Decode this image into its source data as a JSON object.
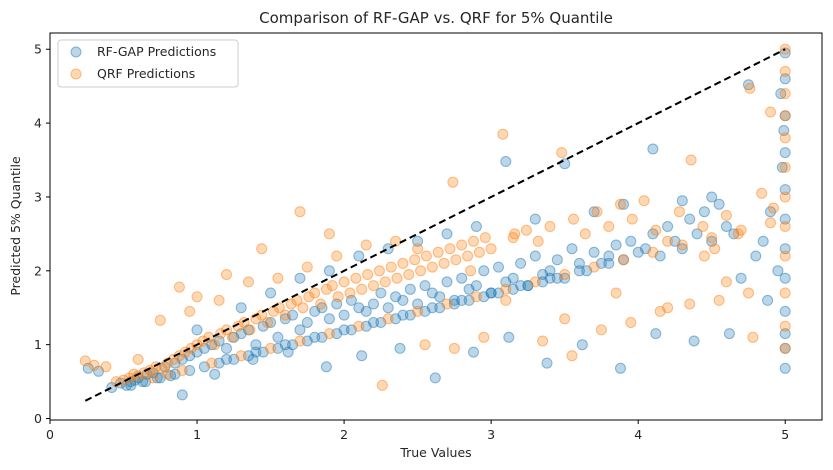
{
  "chart_data": {
    "type": "scatter",
    "title": "Comparison of RF-GAP vs. QRF for 5% Quantile",
    "xlabel": "True Values",
    "ylabel": "Predicted 5% Quantile",
    "xlim": [
      0.0,
      5.25
    ],
    "ylim": [
      -0.02,
      5.22
    ],
    "xticks": [
      0,
      1,
      2,
      3,
      4,
      5
    ],
    "yticks": [
      0,
      1,
      2,
      3,
      4,
      5
    ],
    "grid": false,
    "legend": "top-left",
    "reference_line": {
      "x": [
        0.24,
        5.0
      ],
      "y": [
        0.24,
        5.0
      ],
      "color": "#000000",
      "style": "dashed"
    },
    "series": [
      {
        "name": "RF-GAP Predictions",
        "color": "#1f77b4",
        "x": [
          0.26,
          0.33,
          0.42,
          0.48,
          0.52,
          0.55,
          0.58,
          0.6,
          0.63,
          0.66,
          0.7,
          0.73,
          0.78,
          0.82,
          0.85,
          0.9,
          0.95,
          1.0,
          1.05,
          1.1,
          1.15,
          1.2,
          1.25,
          1.3,
          1.35,
          1.4,
          1.45,
          1.5,
          1.55,
          1.6,
          1.65,
          1.7,
          1.75,
          1.8,
          1.85,
          1.9,
          1.95,
          2.0,
          2.05,
          2.1,
          2.15,
          2.2,
          2.25,
          2.3,
          2.35,
          2.4,
          2.45,
          2.5,
          2.55,
          2.6,
          2.65,
          2.7,
          2.75,
          2.8,
          2.85,
          2.9,
          2.95,
          3.0,
          3.05,
          3.1,
          3.15,
          3.2,
          3.25,
          3.3,
          3.35,
          3.4,
          3.45,
          3.5,
          3.55,
          3.6,
          3.65,
          3.7,
          3.75,
          3.8,
          3.85,
          3.9,
          3.95,
          4.0,
          4.05,
          4.1,
          4.15,
          4.2,
          4.25,
          4.3,
          4.35,
          4.4,
          4.45,
          4.5,
          4.55,
          4.6,
          4.65,
          4.7,
          4.75,
          4.8,
          4.85,
          4.9,
          4.95,
          5.0,
          5.0,
          5.0,
          5.0,
          5.0,
          5.0,
          5.0,
          5.0,
          5.0,
          5.0,
          5.0,
          5.0,
          1.2,
          1.4,
          1.6,
          1.8,
          2.0,
          2.2,
          2.4,
          2.6,
          2.8,
          3.0,
          3.2,
          3.4,
          3.6,
          3.8,
          1.0,
          1.3,
          1.5,
          1.7,
          1.9,
          2.1,
          2.3,
          2.5,
          2.7,
          2.9,
          3.1,
          3.3,
          3.5,
          3.7,
          3.9,
          4.1,
          4.3,
          4.5,
          0.55,
          0.65,
          0.75,
          0.85,
          0.95,
          1.05,
          1.15,
          1.25,
          1.35,
          1.45,
          1.55,
          1.65,
          1.75,
          1.85,
          1.95,
          2.05,
          2.15,
          2.25,
          2.35,
          2.45,
          2.55,
          2.65,
          2.75,
          2.85,
          2.95,
          3.05,
          3.15,
          3.25,
          3.35,
          3.45,
          0.9,
          1.12,
          1.38,
          1.62,
          1.88,
          2.12,
          2.38,
          2.62,
          2.88,
          3.12,
          3.38,
          3.62,
          3.88,
          4.12,
          4.38,
          4.62,
          4.88,
          4.98,
          4.99,
          4.97
        ],
        "y": [
          0.68,
          0.64,
          0.42,
          0.48,
          0.45,
          0.5,
          0.52,
          0.55,
          0.5,
          0.6,
          0.62,
          0.55,
          0.7,
          0.58,
          0.75,
          0.8,
          0.85,
          0.9,
          0.95,
          1.0,
          1.05,
          0.95,
          1.1,
          1.15,
          1.2,
          1.0,
          1.25,
          1.3,
          1.1,
          1.35,
          1.4,
          1.2,
          1.3,
          1.45,
          1.5,
          1.35,
          1.55,
          1.4,
          1.6,
          1.5,
          1.45,
          1.55,
          1.7,
          1.5,
          1.65,
          1.6,
          1.75,
          1.55,
          1.8,
          1.7,
          1.65,
          1.85,
          1.6,
          1.9,
          1.75,
          1.8,
          2.0,
          1.7,
          2.05,
          1.85,
          1.9,
          2.1,
          1.8,
          2.2,
          1.95,
          2.0,
          2.15,
          1.9,
          2.3,
          2.1,
          2.0,
          2.25,
          2.1,
          2.2,
          2.35,
          2.15,
          2.4,
          2.25,
          2.3,
          2.5,
          2.2,
          2.6,
          2.4,
          2.3,
          2.7,
          2.5,
          2.8,
          2.4,
          2.9,
          2.6,
          2.5,
          1.9,
          4.52,
          2.2,
          2.4,
          2.8,
          2.0,
          0.68,
          0.95,
          1.15,
          1.45,
          1.9,
          2.3,
          2.7,
          3.1,
          3.6,
          4.1,
          4.6,
          4.95,
          0.8,
          0.9,
          1.0,
          1.1,
          1.2,
          1.3,
          1.4,
          1.5,
          1.6,
          1.7,
          1.8,
          1.9,
          2.0,
          2.1,
          1.2,
          1.5,
          1.7,
          1.9,
          2.0,
          2.2,
          2.3,
          2.4,
          2.5,
          2.6,
          3.48,
          2.7,
          3.45,
          2.8,
          2.9,
          3.65,
          2.95,
          3.0,
          0.45,
          0.5,
          0.55,
          0.6,
          0.65,
          0.7,
          0.75,
          0.8,
          0.85,
          0.9,
          0.95,
          1.0,
          1.05,
          1.1,
          1.15,
          1.2,
          1.25,
          1.3,
          1.35,
          1.4,
          1.45,
          1.5,
          1.55,
          1.6,
          1.65,
          1.7,
          1.75,
          1.8,
          1.85,
          1.9,
          0.32,
          0.6,
          0.8,
          0.9,
          0.7,
          0.85,
          0.95,
          0.55,
          0.9,
          1.1,
          0.75,
          1.0,
          0.68,
          1.15,
          1.05,
          1.15,
          1.6,
          3.4,
          3.9,
          4.4
        ]
      },
      {
        "name": "QRF Predictions",
        "color": "#ff7f0e",
        "x": [
          0.24,
          0.3,
          0.38,
          0.45,
          0.5,
          0.54,
          0.57,
          0.6,
          0.64,
          0.68,
          0.72,
          0.76,
          0.8,
          0.84,
          0.88,
          0.92,
          0.96,
          1.0,
          1.04,
          1.08,
          1.12,
          1.16,
          1.2,
          1.24,
          1.28,
          1.32,
          1.36,
          1.4,
          1.44,
          1.48,
          1.52,
          1.56,
          1.6,
          1.64,
          1.68,
          1.72,
          1.76,
          1.8,
          1.84,
          1.88,
          1.92,
          1.96,
          2.0,
          2.04,
          2.08,
          2.12,
          2.16,
          2.2,
          2.24,
          2.28,
          2.32,
          2.36,
          2.4,
          2.44,
          2.48,
          2.52,
          2.56,
          2.6,
          2.64,
          2.68,
          2.72,
          2.76,
          2.8,
          2.84,
          2.88,
          2.92,
          2.96,
          3.0,
          3.08,
          3.16,
          3.24,
          3.32,
          3.4,
          3.48,
          3.56,
          3.64,
          3.72,
          3.8,
          3.88,
          3.96,
          4.04,
          4.12,
          4.2,
          4.28,
          4.36,
          4.44,
          4.52,
          4.6,
          4.68,
          4.76,
          4.84,
          4.92,
          5.0,
          5.0,
          5.0,
          5.0,
          5.0,
          5.0,
          5.0,
          5.0,
          5.0,
          5.0,
          5.0,
          5.0,
          0.88,
          1.0,
          1.2,
          1.44,
          1.7,
          1.9,
          2.26,
          2.5,
          2.74,
          2.86,
          3.1,
          3.5,
          3.85,
          4.2,
          4.45,
          4.6,
          4.78,
          4.9,
          0.7,
          0.8,
          0.9,
          1.1,
          1.3,
          1.5,
          1.7,
          1.9,
          2.1,
          2.3,
          2.5,
          2.7,
          2.9,
          3.1,
          3.3,
          3.5,
          3.7,
          3.9,
          4.1,
          4.3,
          4.5,
          4.7,
          4.9,
          0.6,
          0.75,
          0.95,
          1.15,
          1.35,
          1.55,
          1.75,
          1.95,
          2.15,
          2.35,
          2.55,
          2.75,
          2.95,
          3.15,
          3.35,
          3.55,
          3.75,
          3.95,
          4.15,
          4.35,
          4.55,
          4.75
        ],
        "y": [
          0.78,
          0.72,
          0.7,
          0.5,
          0.52,
          0.55,
          0.6,
          0.58,
          0.62,
          0.65,
          0.7,
          0.68,
          0.75,
          0.8,
          0.85,
          0.9,
          0.95,
          1.0,
          1.05,
          1.1,
          1.0,
          1.15,
          1.2,
          1.1,
          1.25,
          1.3,
          1.2,
          1.35,
          1.4,
          1.3,
          1.45,
          1.5,
          1.4,
          1.55,
          1.6,
          1.5,
          1.65,
          1.7,
          1.55,
          1.75,
          1.8,
          1.65,
          1.85,
          1.7,
          1.9,
          1.75,
          1.95,
          1.8,
          2.0,
          1.85,
          2.05,
          1.9,
          2.1,
          1.95,
          2.15,
          2.0,
          2.2,
          2.05,
          2.25,
          2.1,
          2.3,
          2.15,
          2.35,
          2.2,
          2.4,
          2.25,
          2.45,
          2.3,
          3.85,
          2.5,
          2.55,
          2.4,
          2.6,
          3.6,
          2.7,
          2.5,
          2.8,
          2.6,
          2.9,
          2.7,
          2.95,
          2.55,
          2.4,
          2.8,
          3.5,
          2.6,
          2.3,
          2.75,
          2.5,
          4.47,
          3.05,
          2.85,
          5.0,
          4.7,
          4.4,
          4.1,
          3.8,
          3.4,
          3.0,
          2.6,
          2.2,
          1.7,
          1.25,
          0.95,
          1.78,
          1.65,
          1.95,
          2.3,
          2.8,
          2.5,
          0.45,
          2.3,
          3.2,
          2.0,
          1.6,
          1.35,
          1.7,
          1.5,
          2.2,
          1.85,
          1.1,
          4.15,
          0.55,
          0.6,
          0.65,
          0.75,
          0.85,
          0.95,
          1.05,
          1.15,
          1.25,
          1.35,
          1.45,
          1.55,
          1.65,
          1.75,
          1.85,
          1.95,
          2.05,
          2.15,
          2.25,
          2.35,
          2.45,
          2.55,
          2.65,
          0.8,
          1.33,
          1.45,
          1.6,
          1.85,
          1.9,
          2.05,
          2.2,
          2.35,
          2.4,
          1.0,
          0.95,
          1.1,
          2.45,
          1.05,
          0.85,
          1.2,
          1.3,
          1.45,
          1.55,
          1.6,
          1.7
        ]
      }
    ]
  }
}
